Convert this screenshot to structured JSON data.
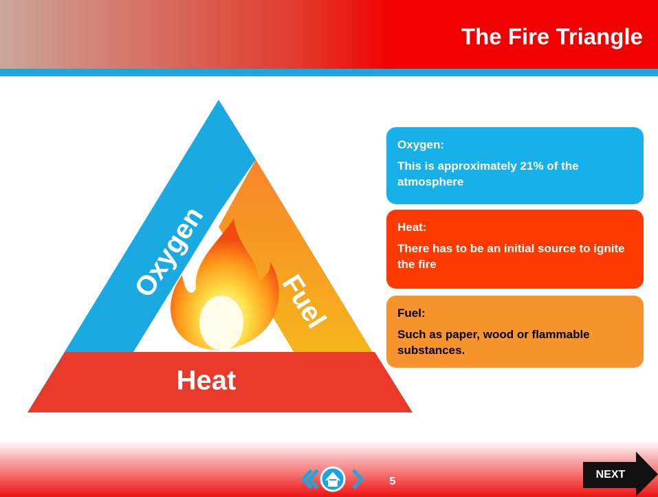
{
  "header": {
    "title": "The Fire Triangle"
  },
  "triangle": {
    "sides": [
      "Oxygen",
      "Fuel",
      "Heat"
    ]
  },
  "boxes": [
    {
      "title": "Oxygen:",
      "text": "This is approximately 21% of the atmosphere"
    },
    {
      "title": "Heat:",
      "text": "There has to be an initial source to ignite the fire"
    },
    {
      "title": "Fuel:",
      "text": "Such as paper, wood or flammable substances."
    }
  ],
  "footer": {
    "page": "5",
    "next": "NEXT"
  }
}
